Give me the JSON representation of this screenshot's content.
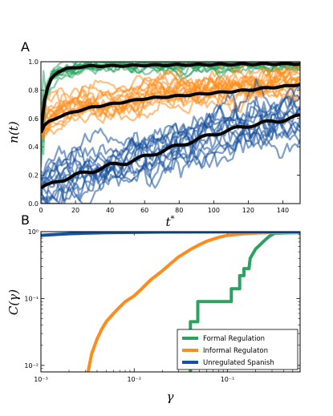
{
  "chart_data": [
    {
      "panel": "A",
      "type": "line",
      "xlabel": "t*",
      "ylabel": "n(t)",
      "xlim": [
        0,
        150
      ],
      "ylim": [
        0,
        1.0
      ],
      "xticks": [
        0,
        20,
        40,
        60,
        80,
        100,
        120,
        140
      ],
      "yticks": [
        0.0,
        0.2,
        0.4,
        0.6,
        0.8,
        1.0
      ],
      "ytick_labels": [
        "0.0",
        "0.2",
        "0.4",
        "0.6",
        "0.8",
        "1.0"
      ],
      "series": [
        {
          "color": "#2ca25f",
          "x": [
            0,
            2,
            4,
            6,
            8,
            10,
            15,
            20,
            30,
            40,
            60,
            80,
            100,
            120,
            150
          ],
          "mean": [
            0.5,
            0.72,
            0.82,
            0.88,
            0.91,
            0.93,
            0.95,
            0.96,
            0.97,
            0.97,
            0.975,
            0.978,
            0.98,
            0.983,
            0.985
          ]
        },
        {
          "color": "#ff8c1a",
          "x": [
            0,
            2,
            5,
            10,
            15,
            20,
            30,
            40,
            50,
            60,
            70,
            80,
            90,
            100,
            110,
            120,
            130,
            140,
            150
          ],
          "mean": [
            0.5,
            0.55,
            0.58,
            0.61,
            0.63,
            0.65,
            0.68,
            0.7,
            0.72,
            0.74,
            0.75,
            0.76,
            0.77,
            0.78,
            0.79,
            0.8,
            0.815,
            0.825,
            0.84
          ]
        },
        {
          "color": "#15519c",
          "x": [
            0,
            5,
            10,
            20,
            30,
            40,
            50,
            60,
            70,
            80,
            90,
            100,
            110,
            120,
            130,
            140,
            150
          ],
          "mean": [
            0.11,
            0.13,
            0.16,
            0.2,
            0.23,
            0.27,
            0.29,
            0.33,
            0.37,
            0.41,
            0.45,
            0.49,
            0.52,
            0.55,
            0.57,
            0.59,
            0.615
          ]
        }
      ]
    },
    {
      "panel": "B",
      "type": "line",
      "xlabel": "γ",
      "ylabel": "C(γ)",
      "xscale": "log",
      "yscale": "log",
      "xlim": [
        0.001,
        0.6
      ],
      "ylim": [
        0.008,
        1.0
      ],
      "xticks": [
        0.001,
        0.01,
        0.1
      ],
      "xtick_labels": [
        "10⁻³",
        "10⁻²",
        "10⁻¹"
      ],
      "yticks": [
        0.01,
        0.1,
        1
      ],
      "ytick_labels": [
        "10⁻²",
        "10⁻¹",
        "10⁰"
      ],
      "legend_position": "lower-right",
      "series": [
        {
          "name": "Formal Regulation",
          "color": "#2ca25f",
          "x": [
            0.04,
            0.04,
            0.048,
            0.048,
            0.11,
            0.11,
            0.135,
            0.135,
            0.15,
            0.15,
            0.17,
            0.175,
            0.2,
            0.24,
            0.28,
            0.32,
            0.6
          ],
          "y": [
            0.008,
            0.045,
            0.045,
            0.09,
            0.09,
            0.14,
            0.14,
            0.22,
            0.22,
            0.28,
            0.28,
            0.4,
            0.55,
            0.7,
            0.85,
            0.95,
            0.97
          ]
        },
        {
          "name": "Informal Regulaton",
          "color": "#ff8c1a",
          "x": [
            0.0032,
            0.0035,
            0.004,
            0.0045,
            0.005,
            0.006,
            0.007,
            0.008,
            0.01,
            0.012,
            0.015,
            0.02,
            0.025,
            0.03,
            0.04,
            0.05,
            0.06,
            0.08,
            0.1,
            0.15,
            0.2,
            0.3,
            0.6
          ],
          "y": [
            0.008,
            0.015,
            0.025,
            0.035,
            0.045,
            0.06,
            0.075,
            0.09,
            0.11,
            0.14,
            0.19,
            0.26,
            0.34,
            0.42,
            0.54,
            0.64,
            0.72,
            0.82,
            0.88,
            0.93,
            0.955,
            0.97,
            0.98
          ]
        },
        {
          "name": "Unregulated Spanish",
          "color": "#15519c",
          "x": [
            0.001,
            0.0015,
            0.002,
            0.003,
            0.005,
            0.01,
            0.02,
            0.05,
            0.1,
            0.6
          ],
          "y": [
            0.88,
            0.91,
            0.93,
            0.95,
            0.965,
            0.975,
            0.985,
            0.99,
            0.995,
            1.0
          ]
        }
      ]
    }
  ]
}
